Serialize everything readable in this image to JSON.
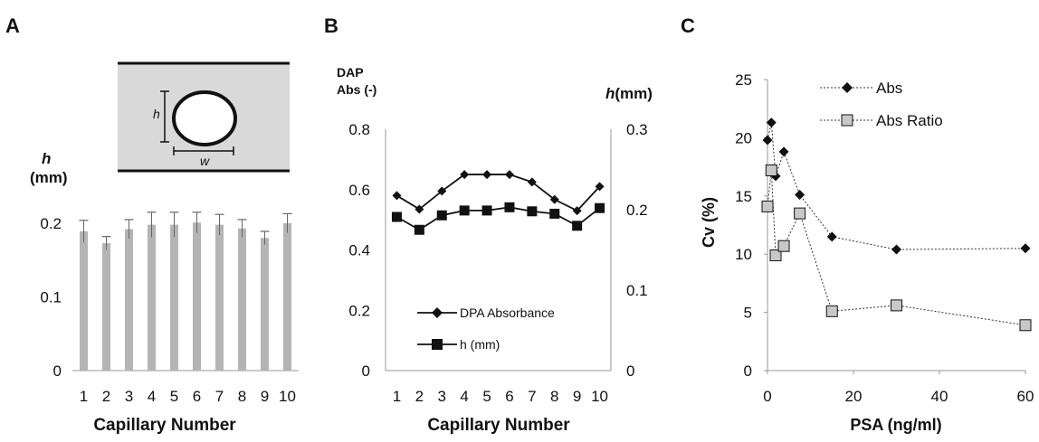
{
  "chart_data": [
    {
      "type": "bar",
      "panel_label": "A",
      "ylabel_italic": "h",
      "ylabel_unit": "(mm)",
      "xlabel": "Capillary Number",
      "categories": [
        "1",
        "2",
        "3",
        "4",
        "5",
        "6",
        "7",
        "8",
        "9",
        "10"
      ],
      "values": [
        0.189,
        0.173,
        0.192,
        0.198,
        0.198,
        0.201,
        0.198,
        0.193,
        0.18,
        0.2
      ],
      "errors": [
        0.015,
        0.009,
        0.013,
        0.017,
        0.017,
        0.014,
        0.014,
        0.012,
        0.009,
        0.013
      ],
      "ylim": [
        0,
        0.2
      ],
      "yticks": [
        "0",
        "0.1",
        "0.2"
      ],
      "bar_color": "#b4b4b4",
      "inset": {
        "height_label": "h",
        "width_label": "w"
      }
    },
    {
      "type": "line",
      "panel_label": "B",
      "ylabel_left_line1": "DAP",
      "ylabel_left_line2": "Abs (-)",
      "ylabel_right_italic": "h",
      "ylabel_right_unit": "(mm)",
      "xlabel": "Capillary Number",
      "x": [
        "1",
        "2",
        "3",
        "4",
        "5",
        "6",
        "7",
        "8",
        "9",
        "10"
      ],
      "yticks_left": [
        "0",
        "0.2",
        "0.4",
        "0.6",
        "0.8"
      ],
      "yticks_right": [
        "0",
        "0.1",
        "0.2",
        "0.3"
      ],
      "ylim_left": [
        0,
        0.8
      ],
      "ylim_right": [
        0,
        0.3
      ],
      "series": [
        {
          "name": "DPA Absorbance",
          "axis": "left",
          "marker": "diamond",
          "values": [
            0.58,
            0.535,
            0.595,
            0.65,
            0.65,
            0.65,
            0.625,
            0.567,
            0.53,
            0.61
          ]
        },
        {
          "name": "h (mm)",
          "axis": "right",
          "marker": "square",
          "values": [
            0.191,
            0.175,
            0.193,
            0.199,
            0.199,
            0.203,
            0.198,
            0.195,
            0.18,
            0.202
          ]
        }
      ],
      "legend": "bottom-left"
    },
    {
      "type": "scatter",
      "panel_label": "C",
      "xlabel": "PSA (ng/ml)",
      "ylabel": "Cv (%)",
      "xticks": [
        "0",
        "20",
        "40",
        "60"
      ],
      "yticks": [
        "0",
        "5",
        "10",
        "15",
        "20",
        "25"
      ],
      "xlim": [
        0,
        60
      ],
      "ylim": [
        0,
        25
      ],
      "series": [
        {
          "name": "Abs",
          "marker": "diamond",
          "line": "dotted",
          "x": [
            0,
            0.9,
            1.9,
            3.8,
            7.5,
            15,
            30,
            60
          ],
          "y": [
            19.8,
            21.3,
            16.7,
            18.8,
            15.1,
            11.5,
            10.4,
            10.5
          ]
        },
        {
          "name": "Abs Ratio",
          "marker": "square",
          "line": "dotted",
          "x": [
            0,
            0.9,
            1.9,
            3.8,
            7.5,
            15,
            30,
            60
          ],
          "y": [
            14.1,
            17.2,
            9.9,
            10.7,
            13.5,
            5.1,
            5.6,
            3.9
          ]
        }
      ],
      "legend": "top-center"
    }
  ]
}
